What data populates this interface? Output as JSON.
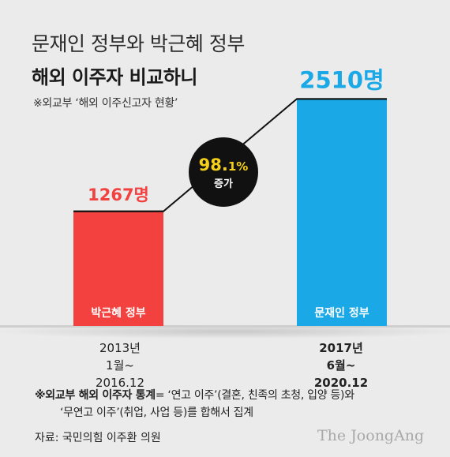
{
  "title": {
    "line1": "문재인 정부와 박근혜 정부",
    "line2": "해외 이주자 비교하니"
  },
  "source_note": "※외교부 ‘해외 이주신고자 현황’",
  "chart_data": {
    "type": "bar",
    "categories": [
      "박근혜 정부",
      "문재인 정부"
    ],
    "periods": [
      "2013년 1월~ 2016.12",
      "2017년 6월~ 2020.12"
    ],
    "values": [
      1267,
      2510
    ],
    "value_labels": [
      "1267명",
      "2510명"
    ],
    "colors": [
      "#f2413f",
      "#1aa9e6"
    ],
    "increase": {
      "value": "98.",
      "decimal": "1%",
      "label": "증가"
    },
    "ylim": [
      0,
      2600
    ]
  },
  "footnote": {
    "lead": "※외교부 해외 이주자 통계",
    "text1": "= ‘연고 이주’(결혼, 친족의 초청, 입양 등)와",
    "text2": "‘무연고 이주’(취업, 사업 등)를 합해서 집계"
  },
  "source": "자료: 국민의힘 이주환 의원",
  "brand": "The JoongAng"
}
